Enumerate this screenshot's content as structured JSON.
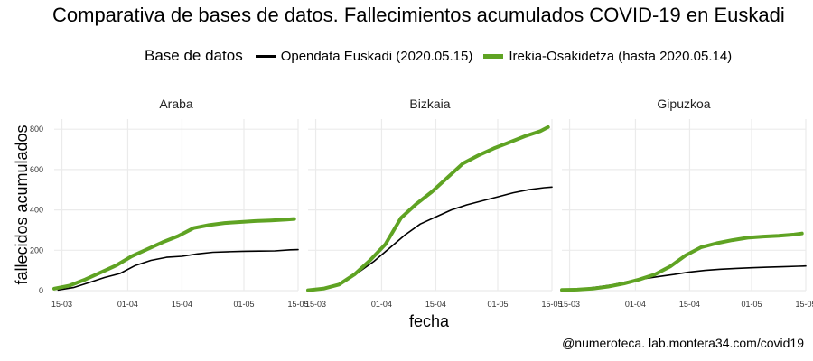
{
  "header": {
    "title": "Comparativa de bases de datos. Fallecimientos acumulados COVID-19 en Euskadi"
  },
  "legend": {
    "title": "Base de datos",
    "items": [
      {
        "label": "Opendata Euskadi (2020.05.15)",
        "color": "#000000"
      },
      {
        "label": "Irekia-Osakidetza (hasta 2020.05.14)",
        "color": "#5fa323"
      }
    ]
  },
  "caption": "@numeroteca. lab.montera34.com/covid19",
  "chart_data": {
    "type": "line",
    "xlabel": "fecha",
    "ylabel": "fallecidos acumulados",
    "xlim": [
      "2020-03-13",
      "2020-05-15"
    ],
    "ylim": [
      0,
      850
    ],
    "x_ticks": [
      {
        "date": "2020-03-15",
        "label": "15-03"
      },
      {
        "date": "2020-04-01",
        "label": "01-04"
      },
      {
        "date": "2020-04-15",
        "label": "15-04"
      },
      {
        "date": "2020-05-01",
        "label": "01-05"
      },
      {
        "date": "2020-05-15",
        "label": "15-05"
      }
    ],
    "y_ticks": [
      0,
      200,
      400,
      600,
      800
    ],
    "grid": true,
    "legend_position": "top",
    "panels": [
      {
        "name": "Araba",
        "series": [
          {
            "name": "Opendata Euskadi (2020.05.15)",
            "x": [
              "2020-03-14",
              "2020-03-18",
              "2020-03-22",
              "2020-03-26",
              "2020-03-30",
              "2020-04-03",
              "2020-04-07",
              "2020-04-11",
              "2020-04-15",
              "2020-04-19",
              "2020-04-23",
              "2020-04-27",
              "2020-05-01",
              "2020-05-05",
              "2020-05-09",
              "2020-05-13",
              "2020-05-15"
            ],
            "values": [
              3,
              15,
              40,
              65,
              85,
              125,
              150,
              165,
              170,
              182,
              190,
              193,
              195,
              196,
              197,
              202,
              203
            ]
          },
          {
            "name": "Irekia-Osakidetza (hasta 2020.05.14)",
            "x": [
              "2020-03-13",
              "2020-03-17",
              "2020-03-21",
              "2020-03-25",
              "2020-03-29",
              "2020-04-02",
              "2020-04-06",
              "2020-04-10",
              "2020-04-14",
              "2020-04-18",
              "2020-04-22",
              "2020-04-26",
              "2020-04-30",
              "2020-05-04",
              "2020-05-08",
              "2020-05-12",
              "2020-05-14"
            ],
            "values": [
              10,
              25,
              55,
              90,
              125,
              170,
              205,
              240,
              270,
              310,
              325,
              335,
              340,
              345,
              348,
              352,
              355
            ]
          }
        ]
      },
      {
        "name": "Bizkaia",
        "series": [
          {
            "name": "Opendata Euskadi (2020.05.15)",
            "x": [
              "2020-03-14",
              "2020-03-18",
              "2020-03-22",
              "2020-03-26",
              "2020-03-30",
              "2020-04-03",
              "2020-04-07",
              "2020-04-11",
              "2020-04-15",
              "2020-04-19",
              "2020-04-23",
              "2020-04-27",
              "2020-05-01",
              "2020-05-05",
              "2020-05-09",
              "2020-05-13",
              "2020-05-15"
            ],
            "values": [
              3,
              15,
              40,
              90,
              145,
              210,
              275,
              330,
              365,
              400,
              425,
              445,
              465,
              485,
              500,
              510,
              513
            ]
          },
          {
            "name": "Irekia-Osakidetza (hasta 2020.05.14)",
            "x": [
              "2020-03-13",
              "2020-03-17",
              "2020-03-21",
              "2020-03-25",
              "2020-03-29",
              "2020-04-02",
              "2020-04-06",
              "2020-04-10",
              "2020-04-14",
              "2020-04-18",
              "2020-04-22",
              "2020-04-26",
              "2020-04-30",
              "2020-05-04",
              "2020-05-08",
              "2020-05-12",
              "2020-05-14"
            ],
            "values": [
              2,
              10,
              30,
              80,
              150,
              230,
              360,
              430,
              490,
              560,
              630,
              670,
              705,
              735,
              765,
              790,
              810
            ]
          }
        ]
      },
      {
        "name": "Gipuzkoa",
        "series": [
          {
            "name": "Opendata Euskadi (2020.05.15)",
            "x": [
              "2020-03-14",
              "2020-03-18",
              "2020-03-22",
              "2020-03-26",
              "2020-03-30",
              "2020-04-03",
              "2020-04-07",
              "2020-04-11",
              "2020-04-15",
              "2020-04-19",
              "2020-04-23",
              "2020-04-27",
              "2020-05-01",
              "2020-05-05",
              "2020-05-09",
              "2020-05-13",
              "2020-05-15"
            ],
            "values": [
              2,
              8,
              18,
              28,
              45,
              58,
              70,
              80,
              92,
              100,
              106,
              110,
              113,
              116,
              118,
              121,
              122
            ]
          },
          {
            "name": "Irekia-Osakidetza (hasta 2020.05.14)",
            "x": [
              "2020-03-13",
              "2020-03-17",
              "2020-03-21",
              "2020-03-25",
              "2020-03-29",
              "2020-04-02",
              "2020-04-06",
              "2020-04-10",
              "2020-04-14",
              "2020-04-18",
              "2020-04-22",
              "2020-04-26",
              "2020-04-30",
              "2020-05-04",
              "2020-05-08",
              "2020-05-12",
              "2020-05-14"
            ],
            "values": [
              3,
              5,
              10,
              20,
              35,
              55,
              80,
              120,
              175,
              215,
              235,
              250,
              262,
              268,
              272,
              278,
              283
            ]
          }
        ]
      }
    ]
  }
}
